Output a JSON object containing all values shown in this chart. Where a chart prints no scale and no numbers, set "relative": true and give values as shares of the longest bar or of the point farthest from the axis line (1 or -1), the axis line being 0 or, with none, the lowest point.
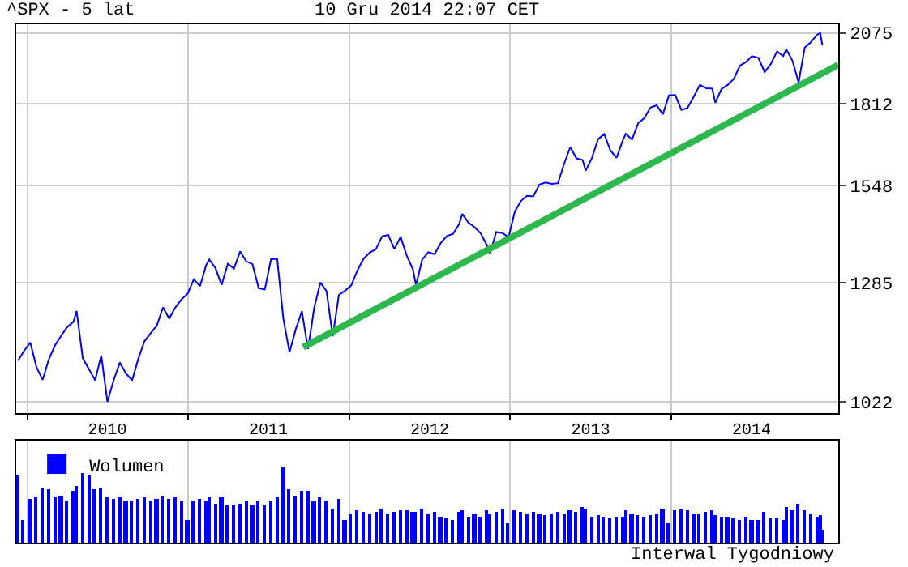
{
  "chart_data": [
    {
      "type": "line",
      "title": "^SPX - 5 lat",
      "subtitle": "10 Gru 2014 22:07 CET",
      "log": "y",
      "grid": true,
      "legend": false,
      "xlim": [
        "2009-12-07",
        "2015-01-15"
      ],
      "xticks": [
        {
          "value": "2010-01-01",
          "label": null
        },
        {
          "value": "2010-07-02",
          "label": "2010"
        },
        {
          "value": "2011-01-01",
          "label": null
        },
        {
          "value": "2011-07-02",
          "label": "2011"
        },
        {
          "value": "2012-01-01",
          "label": null
        },
        {
          "value": "2012-07-02",
          "label": "2012"
        },
        {
          "value": "2013-01-01",
          "label": null
        },
        {
          "value": "2013-07-02",
          "label": "2013"
        },
        {
          "value": "2014-01-01",
          "label": null
        },
        {
          "value": "2014-07-02",
          "label": "2014"
        }
      ],
      "ylim": [
        1000,
        2110
      ],
      "yticks": [
        1022,
        1285,
        1548,
        1812,
        2075
      ],
      "x": [
        "2009-12-11",
        "2009-12-24",
        "2010-01-08",
        "2010-01-22",
        "2010-02-05",
        "2010-02-19",
        "2010-03-05",
        "2010-03-19",
        "2010-04-01",
        "2010-04-16",
        "2010-04-23",
        "2010-05-07",
        "2010-05-21",
        "2010-06-04",
        "2010-06-18",
        "2010-07-02",
        "2010-07-16",
        "2010-07-30",
        "2010-08-13",
        "2010-08-27",
        "2010-09-10",
        "2010-09-24",
        "2010-10-08",
        "2010-10-22",
        "2010-11-05",
        "2010-11-19",
        "2010-12-03",
        "2010-12-17",
        "2010-12-31",
        "2011-01-14",
        "2011-01-28",
        "2011-02-11",
        "2011-02-18",
        "2011-03-04",
        "2011-03-18",
        "2011-04-01",
        "2011-04-15",
        "2011-04-29",
        "2011-05-13",
        "2011-05-27",
        "2011-06-10",
        "2011-06-24",
        "2011-07-08",
        "2011-07-22",
        "2011-08-05",
        "2011-08-19",
        "2011-09-02",
        "2011-09-16",
        "2011-09-30",
        "2011-10-14",
        "2011-10-28",
        "2011-11-11",
        "2011-11-25",
        "2011-12-09",
        "2011-12-23",
        "2012-01-06",
        "2012-01-20",
        "2012-02-03",
        "2012-02-17",
        "2012-03-02",
        "2012-03-16",
        "2012-03-30",
        "2012-04-13",
        "2012-04-27",
        "2012-05-11",
        "2012-05-25",
        "2012-06-01",
        "2012-06-15",
        "2012-06-29",
        "2012-07-13",
        "2012-07-27",
        "2012-08-10",
        "2012-08-24",
        "2012-09-07",
        "2012-09-14",
        "2012-09-28",
        "2012-10-12",
        "2012-10-26",
        "2012-11-09",
        "2012-11-16",
        "2012-11-30",
        "2012-12-14",
        "2012-12-28",
        "2013-01-11",
        "2013-01-25",
        "2013-02-08",
        "2013-02-22",
        "2013-03-08",
        "2013-03-22",
        "2013-04-05",
        "2013-04-19",
        "2013-05-03",
        "2013-05-17",
        "2013-05-31",
        "2013-06-14",
        "2013-06-21",
        "2013-07-05",
        "2013-07-19",
        "2013-08-02",
        "2013-08-16",
        "2013-08-30",
        "2013-09-13",
        "2013-09-20",
        "2013-10-04",
        "2013-10-18",
        "2013-11-01",
        "2013-11-15",
        "2013-11-29",
        "2013-12-13",
        "2013-12-27",
        "2014-01-10",
        "2014-01-24",
        "2014-02-07",
        "2014-02-21",
        "2014-03-07",
        "2014-03-21",
        "2014-04-04",
        "2014-04-11",
        "2014-04-25",
        "2014-05-09",
        "2014-05-23",
        "2014-06-06",
        "2014-06-20",
        "2014-07-03",
        "2014-07-18",
        "2014-08-01",
        "2014-08-15",
        "2014-08-29",
        "2014-09-12",
        "2014-09-19",
        "2014-10-03",
        "2014-10-17",
        "2014-10-31",
        "2014-11-14",
        "2014-11-28",
        "2014-12-05",
        "2014-12-10"
      ],
      "series": [
        {
          "color": "#0000ff",
          "values": [
            1106,
            1126,
            1145,
            1092,
            1066,
            1109,
            1139,
            1160,
            1179,
            1192,
            1217,
            1111,
            1088,
            1065,
            1117,
            1022,
            1065,
            1102,
            1079,
            1065,
            1110,
            1148,
            1166,
            1183,
            1225,
            1199,
            1225,
            1244,
            1258,
            1293,
            1276,
            1329,
            1343,
            1321,
            1279,
            1332,
            1320,
            1364,
            1338,
            1331,
            1271,
            1268,
            1344,
            1345,
            1199,
            1124,
            1174,
            1216,
            1131,
            1224,
            1285,
            1264,
            1159,
            1255,
            1265,
            1278,
            1315,
            1345,
            1361,
            1370,
            1404,
            1408,
            1370,
            1403,
            1353,
            1318,
            1278,
            1343,
            1362,
            1357,
            1386,
            1405,
            1411,
            1438,
            1466,
            1441,
            1429,
            1412,
            1380,
            1359,
            1416,
            1413,
            1402,
            1472,
            1503,
            1518,
            1516,
            1551,
            1557,
            1553,
            1555,
            1614,
            1667,
            1631,
            1626,
            1593,
            1632,
            1692,
            1709,
            1656,
            1633,
            1688,
            1710,
            1691,
            1745,
            1762,
            1798,
            1806,
            1775,
            1841,
            1842,
            1790,
            1797,
            1836,
            1878,
            1866,
            1865,
            1815,
            1863,
            1878,
            1900,
            1949,
            1963,
            1985,
            1978,
            1925,
            1955,
            2003,
            1985,
            2011,
            1968,
            1887,
            2018,
            2039,
            2068,
            2075,
            2026
          ]
        },
        {
          "type": "line",
          "color": "#2db84d",
          "x": [
            "2011-09-19",
            "2015-01-15"
          ],
          "values": [
            1135,
            1952
          ]
        }
      ]
    },
    {
      "type": "bar",
      "relative": true,
      "tick_labels": false,
      "grid": "x",
      "legend": "top left",
      "xlim": [
        "2009-12-07",
        "2015-01-15"
      ],
      "xticks": [
        {
          "value": "2010-01-01",
          "label": null
        },
        {
          "value": "2011-01-01",
          "label": null
        },
        {
          "value": "2012-01-01",
          "label": null
        },
        {
          "value": "2013-01-01",
          "label": null
        },
        {
          "value": "2014-01-01",
          "label": null
        }
      ],
      "annotations": [
        "Interwal Tygodniowy"
      ],
      "x": [
        "2009-12-11",
        "2009-12-24",
        "2010-01-08",
        "2010-01-22",
        "2010-02-05",
        "2010-02-19",
        "2010-03-05",
        "2010-03-19",
        "2010-04-01",
        "2010-04-16",
        "2010-04-23",
        "2010-05-07",
        "2010-05-21",
        "2010-06-04",
        "2010-06-18",
        "2010-07-02",
        "2010-07-16",
        "2010-07-30",
        "2010-08-13",
        "2010-08-27",
        "2010-09-10",
        "2010-09-24",
        "2010-10-08",
        "2010-10-22",
        "2010-11-05",
        "2010-11-19",
        "2010-12-03",
        "2010-12-17",
        "2010-12-31",
        "2011-01-14",
        "2011-01-28",
        "2011-02-11",
        "2011-02-18",
        "2011-03-04",
        "2011-03-18",
        "2011-04-01",
        "2011-04-15",
        "2011-04-29",
        "2011-05-13",
        "2011-05-27",
        "2011-06-10",
        "2011-06-24",
        "2011-07-08",
        "2011-07-22",
        "2011-08-05",
        "2011-08-19",
        "2011-09-02",
        "2011-09-16",
        "2011-09-30",
        "2011-10-14",
        "2011-10-28",
        "2011-11-11",
        "2011-11-25",
        "2011-12-09",
        "2011-12-23",
        "2012-01-06",
        "2012-01-20",
        "2012-02-03",
        "2012-02-17",
        "2012-03-02",
        "2012-03-16",
        "2012-03-30",
        "2012-04-13",
        "2012-04-27",
        "2012-05-11",
        "2012-05-25",
        "2012-06-01",
        "2012-06-15",
        "2012-06-29",
        "2012-07-13",
        "2012-07-27",
        "2012-08-10",
        "2012-08-24",
        "2012-09-07",
        "2012-09-14",
        "2012-09-28",
        "2012-10-12",
        "2012-10-26",
        "2012-11-09",
        "2012-11-16",
        "2012-11-30",
        "2012-12-14",
        "2012-12-28",
        "2013-01-11",
        "2013-01-25",
        "2013-02-08",
        "2013-02-22",
        "2013-03-08",
        "2013-03-22",
        "2013-04-05",
        "2013-04-19",
        "2013-05-03",
        "2013-05-17",
        "2013-05-31",
        "2013-06-14",
        "2013-06-21",
        "2013-07-05",
        "2013-07-19",
        "2013-08-02",
        "2013-08-16",
        "2013-08-30",
        "2013-09-13",
        "2013-09-20",
        "2013-10-04",
        "2013-10-18",
        "2013-11-01",
        "2013-11-15",
        "2013-11-29",
        "2013-12-13",
        "2013-12-27",
        "2014-01-10",
        "2014-01-24",
        "2014-02-07",
        "2014-02-21",
        "2014-03-07",
        "2014-03-21",
        "2014-04-04",
        "2014-04-11",
        "2014-04-25",
        "2014-05-09",
        "2014-05-23",
        "2014-06-06",
        "2014-06-20",
        "2014-07-03",
        "2014-07-18",
        "2014-08-01",
        "2014-08-15",
        "2014-08-29",
        "2014-09-12",
        "2014-09-19",
        "2014-10-03",
        "2014-10-17",
        "2014-10-31",
        "2014-11-14",
        "2014-11-28",
        "2014-12-05",
        "2014-12-10"
      ],
      "series": [
        {
          "name": "Wolumen",
          "color": "#0000ff",
          "values": [
            0.9,
            0.3,
            0.58,
            0.6,
            0.72,
            0.7,
            0.6,
            0.62,
            0.55,
            0.68,
            0.75,
            0.92,
            0.9,
            0.7,
            0.72,
            0.6,
            0.58,
            0.6,
            0.55,
            0.55,
            0.58,
            0.6,
            0.55,
            0.58,
            0.62,
            0.58,
            0.6,
            0.55,
            0.3,
            0.55,
            0.58,
            0.55,
            0.6,
            0.52,
            0.6,
            0.5,
            0.5,
            0.52,
            0.55,
            0.5,
            0.55,
            0.5,
            0.55,
            0.6,
            1.0,
            0.7,
            0.62,
            0.68,
            0.68,
            0.55,
            0.6,
            0.55,
            0.45,
            0.58,
            0.3,
            0.38,
            0.42,
            0.4,
            0.38,
            0.4,
            0.45,
            0.38,
            0.4,
            0.42,
            0.42,
            0.4,
            0.4,
            0.45,
            0.38,
            0.4,
            0.35,
            0.32,
            0.3,
            0.4,
            0.42,
            0.35,
            0.38,
            0.35,
            0.42,
            0.38,
            0.4,
            0.45,
            0.25,
            0.42,
            0.4,
            0.38,
            0.4,
            0.38,
            0.36,
            0.38,
            0.4,
            0.38,
            0.42,
            0.4,
            0.48,
            0.45,
            0.35,
            0.36,
            0.35,
            0.33,
            0.34,
            0.35,
            0.42,
            0.38,
            0.36,
            0.35,
            0.36,
            0.38,
            0.45,
            0.25,
            0.42,
            0.45,
            0.42,
            0.38,
            0.38,
            0.4,
            0.42,
            0.36,
            0.35,
            0.34,
            0.32,
            0.3,
            0.35,
            0.3,
            0.3,
            0.4,
            0.33,
            0.32,
            0.3,
            0.48,
            0.42,
            0.52,
            0.42,
            0.38,
            0.35,
            0.36,
            0.18
          ]
        }
      ]
    }
  ]
}
